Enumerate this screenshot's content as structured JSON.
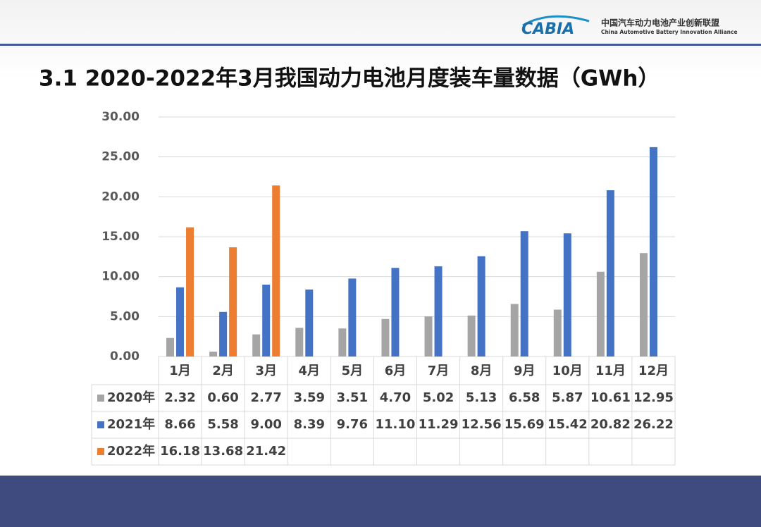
{
  "header": {
    "logo": "CABIA",
    "org_cn": "中国汽车动力电池产业创新联盟",
    "org_en": "China Automotive Battery Innovation Alliance"
  },
  "chart_data": {
    "type": "bar",
    "title": "3.1 2020-2022年3月我国动力电池月度装车量数据（GWh）",
    "categories": [
      "1月",
      "2月",
      "3月",
      "4月",
      "5月",
      "6月",
      "7月",
      "8月",
      "9月",
      "10月",
      "11月",
      "12月"
    ],
    "series": [
      {
        "name": "2020年",
        "color": "#a5a5a5",
        "values": [
          2.32,
          0.6,
          2.77,
          3.59,
          3.51,
          4.7,
          5.02,
          5.13,
          6.58,
          5.87,
          10.61,
          12.95
        ],
        "value_labels": [
          "2.32",
          "0.60",
          "2.77",
          "3.59",
          "3.51",
          "4.70",
          "5.02",
          "5.13",
          "6.58",
          "5.87",
          "10.61",
          "12.95"
        ]
      },
      {
        "name": "2021年",
        "color": "#4472c4",
        "values": [
          8.66,
          5.58,
          9,
          8.39,
          9.76,
          11.1,
          11.29,
          12.56,
          15.69,
          15.42,
          20.82,
          26.22
        ],
        "value_labels": [
          "8.66",
          "5.58",
          "9.00",
          "8.39",
          "9.76",
          "11.10",
          "11.29",
          "12.56",
          "15.69",
          "15.42",
          "20.82",
          "26.22"
        ]
      },
      {
        "name": "2022年",
        "color": "#ed7d31",
        "values": [
          16.18,
          13.68,
          21.42,
          null,
          null,
          null,
          null,
          null,
          null,
          null,
          null,
          null
        ],
        "value_labels": [
          "16.18",
          "13.68",
          "21.42",
          null,
          null,
          null,
          null,
          null,
          null,
          null,
          null,
          null
        ]
      }
    ],
    "ylim": [
      0,
      30
    ],
    "yticks": [
      {
        "value": 0,
        "label": "0.00"
      },
      {
        "value": 5,
        "label": "5.00"
      },
      {
        "value": 10,
        "label": "10.00"
      },
      {
        "value": 15,
        "label": "15.00"
      },
      {
        "value": 20,
        "label": "20.00"
      },
      {
        "value": 25,
        "label": "25.00"
      },
      {
        "value": 30,
        "label": "30.00"
      }
    ],
    "grid": true
  }
}
